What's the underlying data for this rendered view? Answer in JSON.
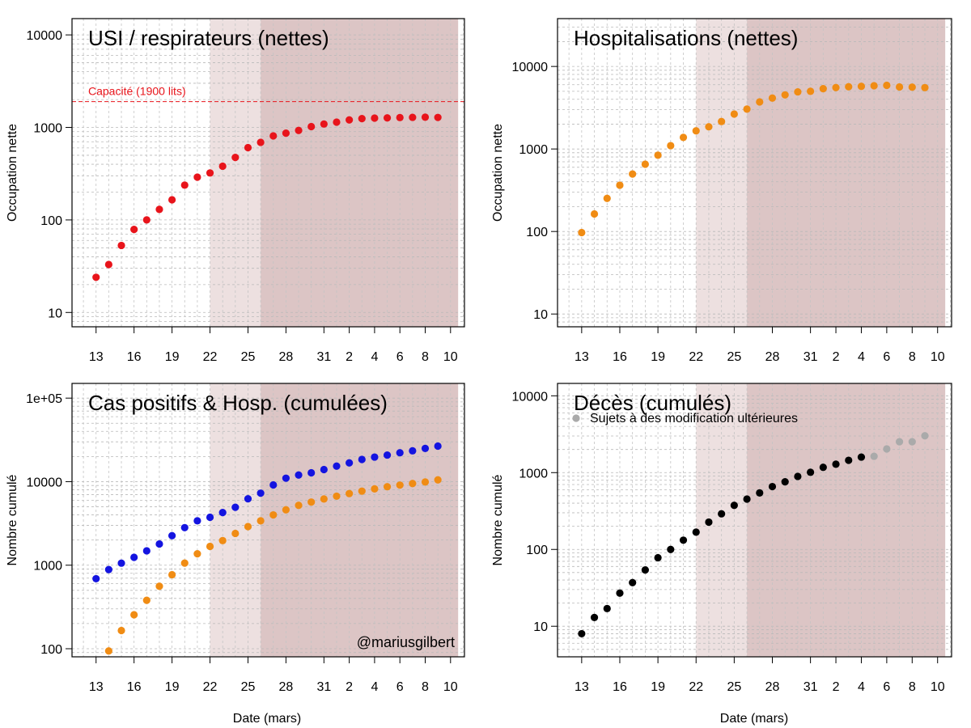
{
  "figure": {
    "xlabel_left": "Date (mars)",
    "xlabel_right": "Date (mars)"
  },
  "x_tick_labels": [
    "13",
    "16",
    "19",
    "22",
    "25",
    "28",
    "31",
    "2",
    "4",
    "6",
    "8",
    "10"
  ],
  "x_tick_days": [
    13,
    16,
    19,
    22,
    25,
    28,
    31,
    33,
    35,
    37,
    39,
    41
  ],
  "phase_shading": {
    "phase1": [
      22,
      26
    ],
    "phase2": [
      26,
      41.6
    ],
    "color1": "#ede0e0",
    "color2": "#dcc5c5"
  },
  "chart_data": [
    {
      "type": "scatter",
      "title": "USI / respirateurs (nettes)",
      "ylabel": "Occupation nette",
      "yscale": "log",
      "ylim": [
        7,
        15000
      ],
      "y_tick_labels": [
        "10",
        "100",
        "1000",
        "10000"
      ],
      "y_ticks": [
        10,
        100,
        1000,
        10000
      ],
      "capacity_line": {
        "value": 1900,
        "label": "Capacité (1900 lits)",
        "color": "#e8141b"
      },
      "series": [
        {
          "name": "USI",
          "color": "#e8141b",
          "x": [
            13,
            14,
            15,
            16,
            17,
            18,
            19,
            20,
            21,
            22,
            23,
            24,
            25,
            26,
            27,
            28,
            29,
            30,
            31,
            32,
            33,
            34,
            35,
            36,
            37,
            38,
            39,
            40
          ],
          "values": [
            24,
            33,
            53,
            79,
            100,
            130,
            165,
            238,
            290,
            322,
            381,
            474,
            605,
            690,
            810,
            867,
            927,
            1021,
            1088,
            1140,
            1205,
            1245,
            1261,
            1267,
            1278,
            1285,
            1290,
            1282
          ]
        }
      ]
    },
    {
      "type": "scatter",
      "title": "Hospitalisations (nettes)",
      "ylabel": "Occupation nette",
      "yscale": "log",
      "ylim": [
        7,
        38000
      ],
      "y_tick_labels": [
        "10",
        "100",
        "1000",
        "10000"
      ],
      "y_ticks": [
        10,
        100,
        1000,
        10000
      ],
      "series": [
        {
          "name": "Hospitalisations",
          "color": "#f08c14",
          "x": [
            13,
            14,
            15,
            16,
            17,
            18,
            19,
            20,
            21,
            22,
            23,
            24,
            25,
            26,
            27,
            28,
            29,
            30,
            31,
            32,
            33,
            34,
            35,
            36,
            37,
            38,
            39,
            40
          ],
          "values": [
            97,
            163,
            252,
            364,
            497,
            654,
            840,
            1097,
            1381,
            1659,
            1859,
            2152,
            2652,
            3042,
            3717,
            4138,
            4524,
            4920,
            4995,
            5376,
            5552,
            5678,
            5735,
            5840,
            5905,
            5643,
            5610,
            5540
          ]
        }
      ]
    },
    {
      "type": "scatter",
      "title": "Cas positifs & Hosp. (cumulées)",
      "ylabel": "Nombre cumulé",
      "yscale": "log",
      "ylim": [
        80,
        150000
      ],
      "y_tick_labels": [
        "100",
        "1000",
        "10000",
        "1e+05"
      ],
      "y_ticks": [
        100,
        1000,
        10000,
        100000
      ],
      "annotation": "@mariusgilbert",
      "series": [
        {
          "name": "Cas positifs",
          "color": "#1414e0",
          "x": [
            13,
            14,
            15,
            16,
            17,
            18,
            19,
            20,
            21,
            22,
            23,
            24,
            25,
            26,
            27,
            28,
            29,
            30,
            31,
            32,
            33,
            34,
            35,
            36,
            37,
            38,
            39,
            40
          ],
          "values": [
            689,
            886,
            1058,
            1243,
            1486,
            1795,
            2257,
            2815,
            3401,
            3743,
            4269,
            4937,
            6235,
            7284,
            9134,
            11000,
            12000,
            12775,
            13964,
            15348,
            16770,
            18431,
            19691,
            20814,
            22194,
            23403,
            24983,
            26667
          ]
        },
        {
          "name": "Hospitalisations cumulées",
          "color": "#f08c14",
          "x": [
            14,
            15,
            16,
            17,
            18,
            19,
            20,
            21,
            22,
            23,
            24,
            25,
            26,
            27,
            28,
            29,
            30,
            31,
            32,
            33,
            34,
            35,
            36,
            37,
            38,
            39,
            40
          ],
          "values": [
            94,
            165,
            255,
            380,
            560,
            770,
            1060,
            1370,
            1680,
            1970,
            2400,
            2900,
            3400,
            4000,
            4600,
            5200,
            5700,
            6200,
            6700,
            7200,
            7700,
            8200,
            8700,
            9100,
            9500,
            9900,
            10500
          ]
        }
      ]
    },
    {
      "type": "scatter",
      "title": "Décès (cumulés)",
      "ylabel": "Nombre cumulé",
      "yscale": "log",
      "ylim": [
        4,
        14500
      ],
      "y_tick_labels": [
        "10",
        "100",
        "1000",
        "10000"
      ],
      "y_ticks": [
        10,
        100,
        1000,
        10000
      ],
      "legend": {
        "label": "Sujets à des modification ultérieures",
        "placement": "top-left"
      },
      "series": [
        {
          "name": "Décès",
          "color": "#000000",
          "x": [
            13,
            14,
            15,
            16,
            17,
            18,
            19,
            20,
            21,
            22,
            23,
            24,
            25,
            26,
            27,
            28,
            29,
            30,
            31,
            32,
            33,
            34,
            35
          ],
          "values": [
            8,
            13,
            17,
            27,
            37,
            54,
            78,
            100,
            132,
            168,
            227,
            291,
            375,
            452,
            544,
            658,
            759,
            893,
            1011,
            1173,
            1288,
            1447,
            1593
          ]
        },
        {
          "name": "Sujets à des modification ultérieures",
          "color": "#aaaaaa",
          "x": [
            36,
            37,
            38,
            39,
            40
          ],
          "values": [
            1632,
            2035,
            2523,
            2523,
            3019
          ]
        }
      ]
    }
  ]
}
